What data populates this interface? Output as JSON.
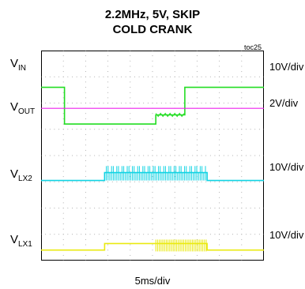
{
  "title_line1": "2.2MHz, 5V, SKIP",
  "title_line2": "COLD CRANK",
  "figure_id": "toc25",
  "x_scale": "5ms/div",
  "channels": [
    {
      "label_main": "V",
      "label_sub": "IN",
      "scale": "10V/div",
      "color": "#22dd22"
    },
    {
      "label_main": "V",
      "label_sub": "OUT",
      "scale": "2V/div",
      "color": "#ee22ee"
    },
    {
      "label_main": "V",
      "label_sub": "LX2",
      "scale": "10V/div",
      "color": "#11d3e3"
    },
    {
      "label_main": "V",
      "label_sub": "LX1",
      "scale": "10V/div",
      "color": "#eaea10"
    }
  ],
  "chart_data": {
    "type": "line",
    "title": "2.2MHz, 5V, SKIP COLD CRANK",
    "xlabel": "5ms/div",
    "x_divisions": 10,
    "y_divisions": 8,
    "grid": true,
    "series": [
      {
        "name": "VIN",
        "scale": "10V/div",
        "x": [
          0,
          1.05,
          1.05,
          5.15,
          5.15,
          6.45,
          6.45,
          10
        ],
        "level_div": [
          6.6,
          6.6,
          5.2,
          5.2,
          5.55,
          5.55,
          6.6,
          6.6
        ]
      },
      {
        "name": "VOUT",
        "scale": "2V/div",
        "x": [
          0,
          10
        ],
        "level_div": [
          5.8,
          5.8
        ]
      },
      {
        "name": "VLX2",
        "scale": "10V/div",
        "x": [
          0,
          2.85,
          2.85,
          7.45,
          7.45,
          10
        ],
        "level_div": [
          3.05,
          3.05,
          3.35,
          3.35,
          3.05,
          3.05
        ],
        "switching_x": [
          2.85,
          7.45
        ]
      },
      {
        "name": "VLX1",
        "scale": "10V/div",
        "x": [
          0,
          2.85,
          2.85,
          5.15,
          5.15,
          7.45,
          7.45,
          10
        ],
        "level_div": [
          0.4,
          0.4,
          0.65,
          0.65,
          0.65,
          0.65,
          0.4,
          0.4
        ],
        "switching_x": [
          5.15,
          7.45
        ]
      }
    ]
  }
}
